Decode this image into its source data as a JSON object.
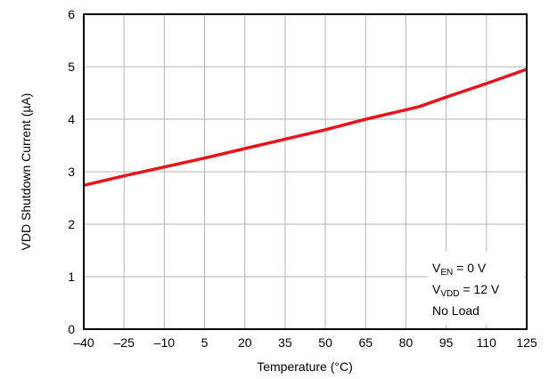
{
  "chart_data": {
    "type": "line",
    "title": "",
    "xlabel": "Temperature (°C)",
    "ylabel": "VDD Shutdown Current (µA)",
    "xlim": [
      -40,
      125
    ],
    "ylim": [
      0,
      6
    ],
    "x_ticks": [
      "–40",
      "–25",
      "–10",
      "5",
      "20",
      "35",
      "50",
      "65",
      "80",
      "95",
      "110",
      "125"
    ],
    "y_ticks": [
      "0",
      "1",
      "2",
      "3",
      "4",
      "5",
      "6"
    ],
    "grid": true,
    "line_color": "#e8141b",
    "series": [
      {
        "x": [
          -40,
          -25,
          -10,
          5,
          20,
          35,
          50,
          65,
          80,
          85,
          95,
          110,
          125
        ],
        "values": [
          2.74,
          2.92,
          3.09,
          3.26,
          3.44,
          3.62,
          3.8,
          4.0,
          4.18,
          4.24,
          4.42,
          4.68,
          4.95
        ]
      }
    ],
    "annotation": {
      "line1": {
        "main": "V",
        "sub": "EN",
        "rest": " = 0 V"
      },
      "line2": {
        "main": "V",
        "sub": "VDD",
        "rest": " = 12 V"
      },
      "line3": "No Load"
    }
  }
}
